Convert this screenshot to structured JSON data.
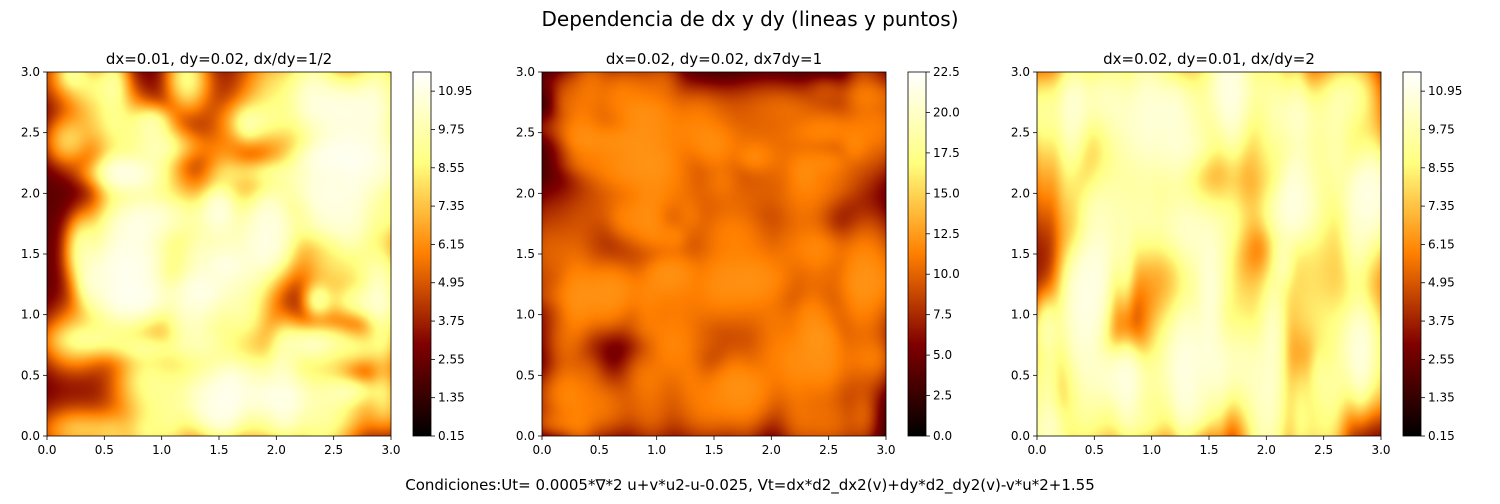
{
  "figure": {
    "suptitle": "Dependencia de dx y dy (lineas y puntos)",
    "footer": "Condiciones:Ut= 0.0005*∇*2 u+v*u2-u-0.025, Vt=dx*d2_dx2(v)+dy*d2_dy2(v)-v*u*2+1.55"
  },
  "chart_data": [
    {
      "type": "heatmap",
      "title": "dx=0.01, dy=0.02, dx/dy=1/2",
      "xlabel": "",
      "ylabel": "",
      "xlim": [
        0,
        3
      ],
      "ylim": [
        0,
        3
      ],
      "x_ticks": [
        "0.0",
        "0.5",
        "1.0",
        "1.5",
        "2.0",
        "2.5",
        "3.0"
      ],
      "y_ticks": [
        "0.0",
        "0.5",
        "1.0",
        "1.5",
        "2.0",
        "2.5",
        "3.0"
      ],
      "colormap": "afmhot",
      "colorbar": {
        "min": 0.15,
        "max": 11.55,
        "ticks": [
          "0.15",
          "1.35",
          "2.55",
          "3.75",
          "4.95",
          "6.15",
          "7.35",
          "8.55",
          "9.75",
          "10.95"
        ]
      },
      "pattern": {
        "seed": 11,
        "sx": 1.0,
        "sy": 1.0,
        "blobs": 150,
        "base": 0.18,
        "gain": 0.95
      }
    },
    {
      "type": "heatmap",
      "title": "dx=0.02, dy=0.02, dx7dy=1",
      "xlabel": "",
      "ylabel": "",
      "xlim": [
        0,
        3
      ],
      "ylim": [
        0,
        3
      ],
      "x_ticks": [
        "0.0",
        "0.5",
        "1.0",
        "1.5",
        "2.0",
        "2.5",
        "3.0"
      ],
      "y_ticks": [
        "0.0",
        "0.5",
        "1.0",
        "1.5",
        "2.0",
        "2.5",
        "3.0"
      ],
      "colormap": "afmhot",
      "colorbar": {
        "min": 0.0,
        "max": 22.5,
        "ticks": [
          "0.0",
          "2.5",
          "5.0",
          "7.5",
          "10.0",
          "12.5",
          "15.0",
          "17.5",
          "20.0",
          "22.5"
        ]
      },
      "pattern": {
        "seed": 29,
        "sx": 1.0,
        "sy": 1.0,
        "blobs": 190,
        "base": 0.08,
        "gain": 0.55
      }
    },
    {
      "type": "heatmap",
      "title": "dx=0.02, dy=0.01, dx/dy=2",
      "xlabel": "",
      "ylabel": "",
      "xlim": [
        0,
        3
      ],
      "ylim": [
        0,
        3
      ],
      "x_ticks": [
        "0.0",
        "0.5",
        "1.0",
        "1.5",
        "2.0",
        "2.5",
        "3.0"
      ],
      "y_ticks": [
        "0.0",
        "0.5",
        "1.0",
        "1.5",
        "2.0",
        "2.5",
        "3.0"
      ],
      "colormap": "afmhot",
      "colorbar": {
        "min": 0.15,
        "max": 11.55,
        "ticks": [
          "0.15",
          "1.35",
          "2.55",
          "3.75",
          "4.95",
          "6.15",
          "7.35",
          "8.55",
          "9.75",
          "10.95"
        ]
      },
      "pattern": {
        "seed": 47,
        "sx": 0.75,
        "sy": 1.9,
        "blobs": 140,
        "base": 0.2,
        "gain": 0.9
      }
    }
  ]
}
